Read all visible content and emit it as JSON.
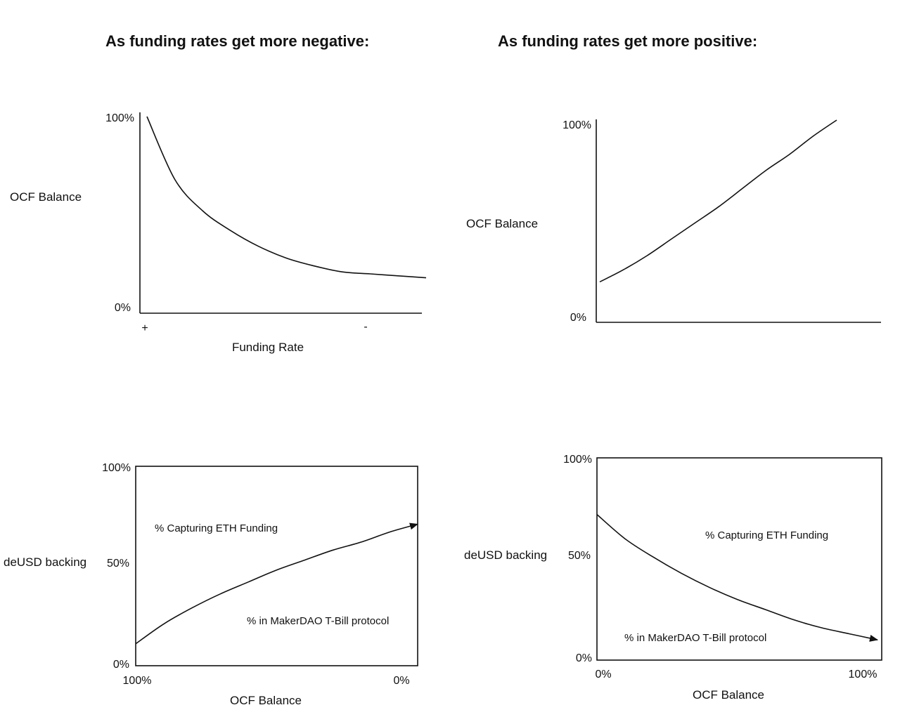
{
  "headings": {
    "left": "As funding rates get more negative:",
    "right": "As funding rates get more positive:"
  },
  "chart_data": [
    {
      "id": "top-left",
      "type": "line",
      "title": "",
      "ylabel": "OCF Balance",
      "xlabel": "Funding Rate",
      "y_ticks": [
        "100%",
        "0%"
      ],
      "x_ticks": [
        "+",
        "-"
      ],
      "series": [
        {
          "x": [
            0,
            0.1,
            0.2,
            0.3,
            0.4,
            0.5,
            0.6,
            0.7,
            0.8,
            0.9,
            1.0
          ],
          "values": [
            1.0,
            0.68,
            0.52,
            0.42,
            0.34,
            0.28,
            0.24,
            0.21,
            0.2,
            0.19,
            0.18
          ]
        }
      ]
    },
    {
      "id": "top-right",
      "type": "line",
      "title": "",
      "ylabel": "OCF Balance",
      "xlabel": "",
      "y_ticks": [
        "100%",
        "0%"
      ],
      "x_ticks": [],
      "series": [
        {
          "x": [
            0,
            0.1,
            0.2,
            0.3,
            0.4,
            0.5,
            0.6,
            0.7,
            0.8,
            0.9,
            1.0
          ],
          "values": [
            0.2,
            0.26,
            0.33,
            0.41,
            0.49,
            0.57,
            0.66,
            0.75,
            0.83,
            0.92,
            1.0
          ]
        }
      ]
    },
    {
      "id": "bottom-left",
      "type": "area",
      "title": "",
      "ylabel": "deUSD backing",
      "xlabel": "OCF Balance",
      "y_ticks": [
        "100%",
        "50%",
        "0%"
      ],
      "x_ticks": [
        "100%",
        "0%"
      ],
      "x_reversed": true,
      "series": [
        {
          "x": [
            1.0,
            0.9,
            0.8,
            0.7,
            0.6,
            0.5,
            0.4,
            0.3,
            0.2,
            0.1,
            0.0
          ],
          "values": [
            0.11,
            0.21,
            0.29,
            0.36,
            0.42,
            0.48,
            0.53,
            0.58,
            0.62,
            0.67,
            0.71
          ],
          "arrow": true
        }
      ],
      "annotations": {
        "upper": "% Capturing ETH Funding",
        "lower": "% in MakerDAO T-Bill protocol"
      }
    },
    {
      "id": "bottom-right",
      "type": "area",
      "title": "",
      "ylabel": "deUSD backing",
      "xlabel": "OCF Balance",
      "y_ticks": [
        "100%",
        "50%",
        "0%"
      ],
      "x_ticks": [
        "0%",
        "100%"
      ],
      "x_reversed": false,
      "series": [
        {
          "x": [
            0.0,
            0.1,
            0.2,
            0.3,
            0.4,
            0.5,
            0.6,
            0.7,
            0.8,
            0.9,
            1.0
          ],
          "values": [
            0.72,
            0.6,
            0.51,
            0.43,
            0.36,
            0.3,
            0.25,
            0.2,
            0.16,
            0.13,
            0.1
          ],
          "arrow": true
        }
      ],
      "annotations": {
        "upper": "% Capturing ETH Funding",
        "lower": "% in MakerDAO T-Bill protocol"
      }
    }
  ]
}
